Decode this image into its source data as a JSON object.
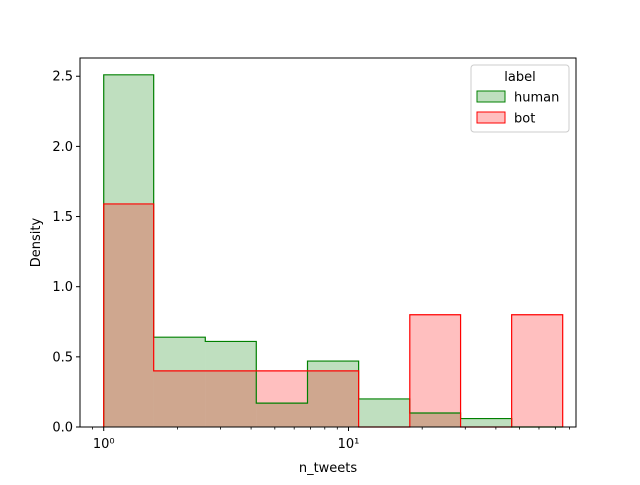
{
  "chart_data": {
    "type": "bar",
    "subtype": "step-histogram",
    "xlabel": "n_tweets",
    "ylabel": "Density",
    "xscale": "log",
    "xlim": [
      0.8,
      85
    ],
    "ylim": [
      0,
      2.63
    ],
    "x_ticks": [
      {
        "value": 1,
        "label": "10⁰"
      },
      {
        "value": 10,
        "label": "10¹"
      }
    ],
    "y_ticks": [
      {
        "value": 0.0,
        "label": "0.0"
      },
      {
        "value": 0.5,
        "label": "0.5"
      },
      {
        "value": 1.0,
        "label": "1.0"
      },
      {
        "value": 1.5,
        "label": "1.5"
      },
      {
        "value": 2.0,
        "label": "2.0"
      },
      {
        "value": 2.5,
        "label": "2.5"
      }
    ],
    "bin_edges": [
      1,
      1.6,
      2.6,
      4.2,
      6.8,
      11,
      17.8,
      28.7,
      46.4,
      75
    ],
    "series": [
      {
        "name": "human",
        "values": [
          2.51,
          0.64,
          0.61,
          0.17,
          0.47,
          0.2,
          0.1,
          0.06,
          0.0
        ],
        "stroke": "#008000",
        "fill": "#008000",
        "fill_opacity": 0.25
      },
      {
        "name": "bot",
        "values": [
          1.59,
          0.4,
          0.4,
          0.4,
          0.4,
          0.0,
          0.8,
          0.0,
          0.8
        ],
        "stroke": "#ff0000",
        "fill": "#ff0000",
        "fill_opacity": 0.25
      }
    ],
    "legend": {
      "title": "label",
      "position": "top-right",
      "entries": [
        "human",
        "bot"
      ]
    },
    "grid": false
  }
}
